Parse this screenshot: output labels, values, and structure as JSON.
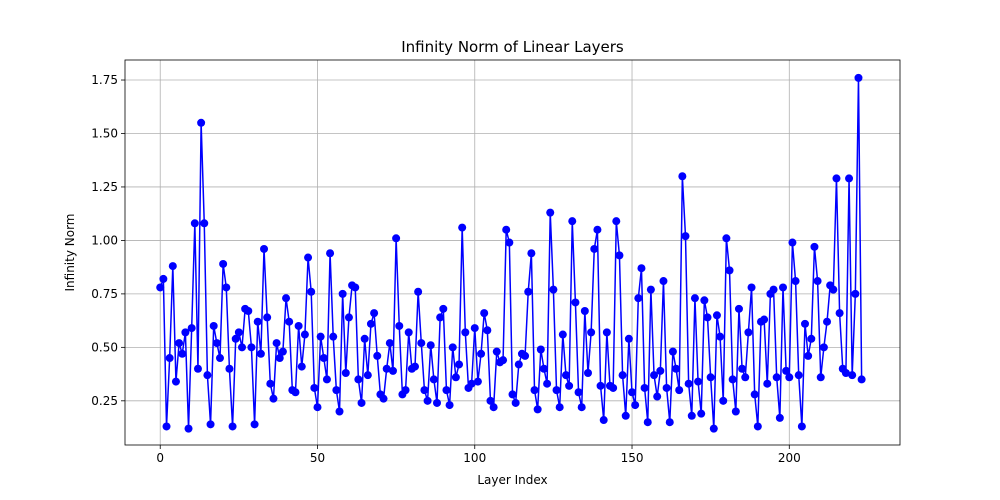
{
  "chart_data": {
    "type": "line",
    "title": "Infinity Norm of Linear Layers",
    "xlabel": "Layer Index",
    "ylabel": "Infinity Norm",
    "xlim": [
      -11.2,
      235.2
    ],
    "ylim": [
      0.0434,
      1.8436
    ],
    "xticks": [
      0,
      50,
      100,
      150,
      200
    ],
    "xtick_labels": [
      "0",
      "50",
      "100",
      "150",
      "200"
    ],
    "yticks": [
      0.25,
      0.5,
      0.75,
      1.0,
      1.25,
      1.5,
      1.75
    ],
    "ytick_labels": [
      "0.25",
      "0.50",
      "0.75",
      "1.00",
      "1.25",
      "1.50",
      "1.75"
    ],
    "grid": true,
    "series": [
      {
        "color": "#0000ff",
        "marker": "circle",
        "x_start": 0,
        "x_step": 1,
        "values": [
          0.78,
          0.82,
          0.13,
          0.45,
          0.88,
          0.34,
          0.52,
          0.47,
          0.57,
          0.12,
          0.59,
          1.08,
          0.4,
          1.55,
          1.08,
          0.37,
          0.14,
          0.6,
          0.52,
          0.45,
          0.89,
          0.78,
          0.4,
          0.13,
          0.54,
          0.57,
          0.5,
          0.68,
          0.67,
          0.5,
          0.14,
          0.62,
          0.47,
          0.96,
          0.64,
          0.33,
          0.26,
          0.52,
          0.45,
          0.48,
          0.73,
          0.62,
          0.3,
          0.29,
          0.6,
          0.41,
          0.56,
          0.92,
          0.76,
          0.31,
          0.22,
          0.55,
          0.45,
          0.35,
          0.94,
          0.55,
          0.3,
          0.2,
          0.75,
          0.38,
          0.64,
          0.79,
          0.78,
          0.35,
          0.24,
          0.54,
          0.37,
          0.61,
          0.66,
          0.46,
          0.28,
          0.26,
          0.4,
          0.52,
          0.39,
          1.01,
          0.6,
          0.28,
          0.3,
          0.57,
          0.4,
          0.41,
          0.76,
          0.52,
          0.3,
          0.25,
          0.51,
          0.35,
          0.24,
          0.64,
          0.68,
          0.3,
          0.23,
          0.5,
          0.36,
          0.42,
          1.06,
          0.57,
          0.31,
          0.33,
          0.59,
          0.34,
          0.47,
          0.66,
          0.58,
          0.25,
          0.22,
          0.48,
          0.43,
          0.44,
          1.05,
          0.99,
          0.28,
          0.24,
          0.42,
          0.47,
          0.46,
          0.76,
          0.94,
          0.3,
          0.21,
          0.49,
          0.4,
          0.33,
          1.13,
          0.77,
          0.3,
          0.22,
          0.56,
          0.37,
          0.32,
          1.09,
          0.71,
          0.29,
          0.22,
          0.67,
          0.38,
          0.57,
          0.96,
          1.05,
          0.32,
          0.16,
          0.57,
          0.32,
          0.31,
          1.09,
          0.93,
          0.37,
          0.18,
          0.54,
          0.29,
          0.23,
          0.73,
          0.87,
          0.31,
          0.15,
          0.77,
          0.37,
          0.27,
          0.39,
          0.81,
          0.31,
          0.15,
          0.48,
          0.4,
          0.3,
          1.3,
          1.02,
          0.33,
          0.18,
          0.73,
          0.34,
          0.19,
          0.72,
          0.64,
          0.36,
          0.12,
          0.65,
          0.55,
          0.25,
          1.01,
          0.86,
          0.35,
          0.2,
          0.68,
          0.4,
          0.36,
          0.57,
          0.78,
          0.28,
          0.13,
          0.62,
          0.63,
          0.33,
          0.75,
          0.77,
          0.36,
          0.17,
          0.78,
          0.39,
          0.36,
          0.99,
          0.81,
          0.37,
          0.13,
          0.61,
          0.46,
          0.54,
          0.97,
          0.81,
          0.36,
          0.5,
          0.62,
          0.79,
          0.77,
          1.29,
          0.66,
          0.4,
          0.38,
          1.29,
          0.37,
          0.75,
          1.76,
          0.35
        ]
      }
    ]
  }
}
